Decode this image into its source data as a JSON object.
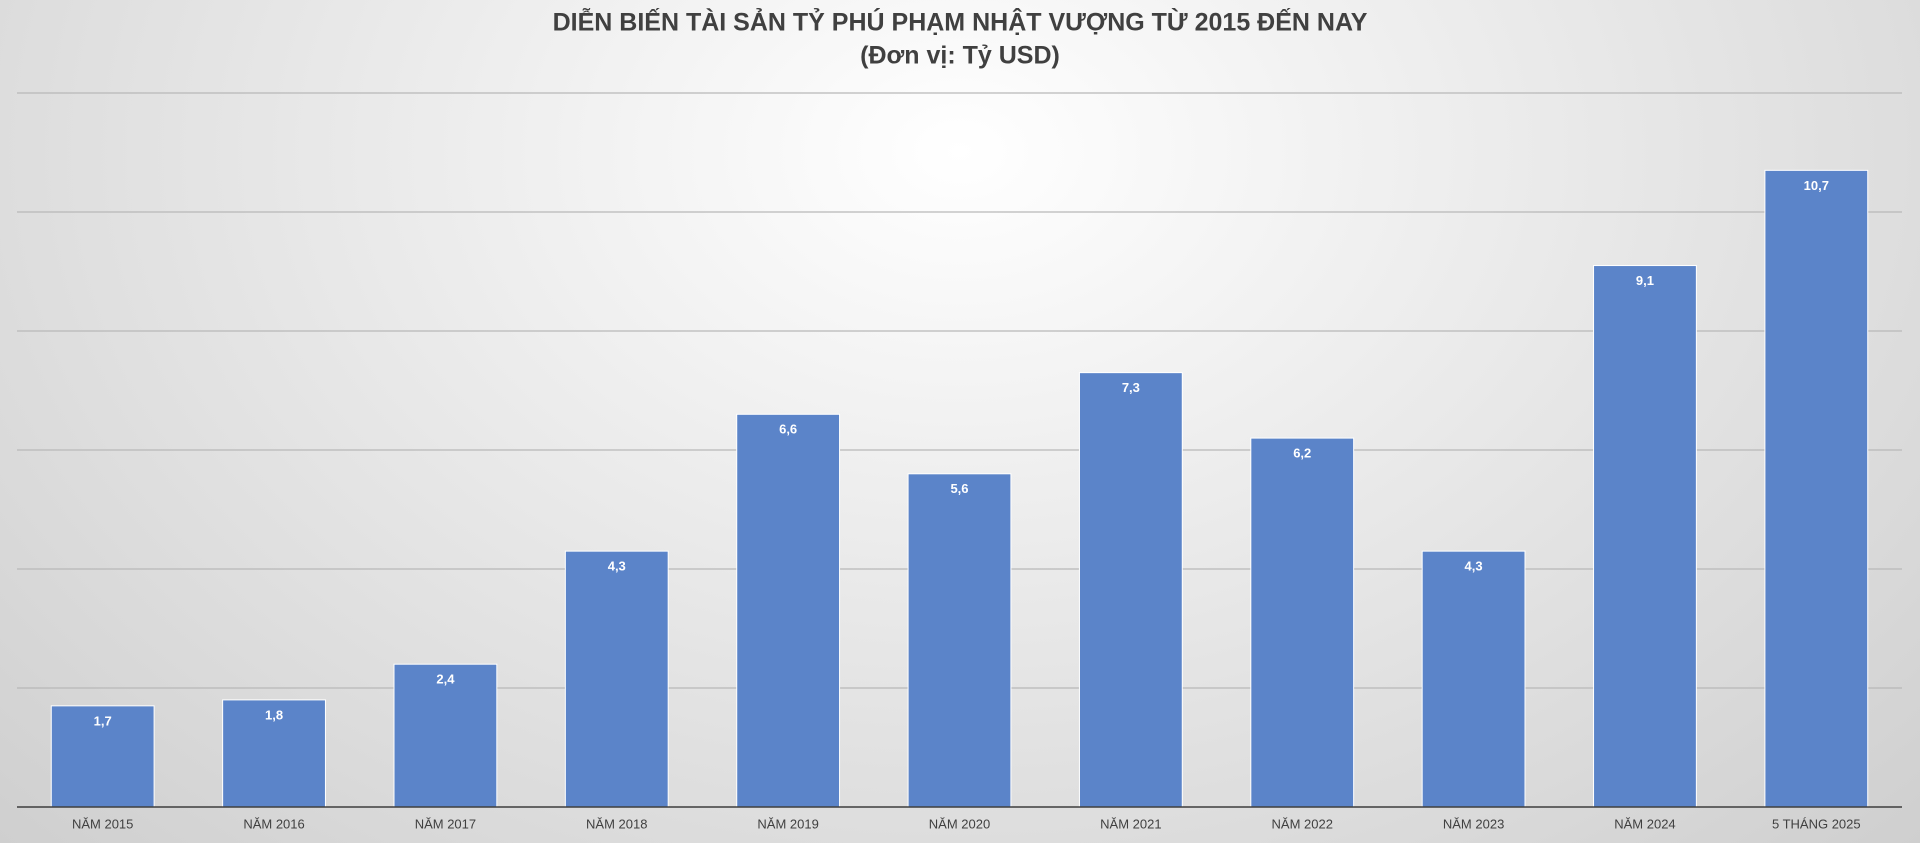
{
  "chart_data": {
    "type": "bar",
    "title": "DIỄN BIẾN TÀI SẢN TỶ PHÚ PHẠM NHẬT VƯỢNG TỪ 2015 ĐẾN NAY",
    "subtitle": "(Đơn vị: Tỷ USD)",
    "categories": [
      "NĂM 2015",
      "NĂM 2016",
      "NĂM 2017",
      "NĂM 2018",
      "NĂM 2019",
      "NĂM 2020",
      "NĂM 2021",
      "NĂM 2022",
      "NĂM 2023",
      "NĂM 2024",
      "5 THÁNG 2025"
    ],
    "values": [
      1.7,
      1.8,
      2.4,
      4.3,
      6.6,
      5.6,
      7.3,
      6.2,
      4.3,
      9.1,
      10.7
    ],
    "value_labels": [
      "1,7",
      "1,8",
      "2,4",
      "4,3",
      "6,6",
      "5,6",
      "7,3",
      "6,2",
      "4,3",
      "9,1",
      "10,7"
    ],
    "color": "#5b84c9",
    "ylim": [
      0,
      12
    ],
    "yticks": [
      0,
      2,
      4,
      6,
      8,
      10,
      12
    ],
    "grid": true
  }
}
